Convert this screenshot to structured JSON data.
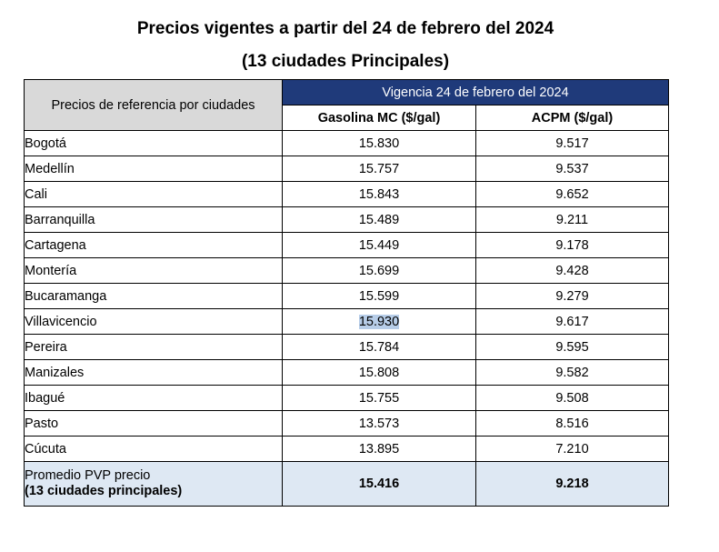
{
  "title": {
    "line1": "Precios vigentes a partir del 24 de febrero del 2024",
    "line2": "(13 ciudades Principales)"
  },
  "table": {
    "ref_header": "Precios de referencia por ciudades",
    "vigencia_header": "Vigencia 24 de febrero del 2024",
    "col_gasolina": "Gasolina MC ($/gal)",
    "col_acpm": "ACPM ($/gal)",
    "rows": [
      {
        "city": "Bogotá",
        "gasolina": "15.830",
        "acpm": "9.517"
      },
      {
        "city": "Medellín",
        "gasolina": "15.757",
        "acpm": "9.537"
      },
      {
        "city": "Cali",
        "gasolina": "15.843",
        "acpm": "9.652"
      },
      {
        "city": "Barranquilla",
        "gasolina": "15.489",
        "acpm": "9.211"
      },
      {
        "city": "Cartagena",
        "gasolina": "15.449",
        "acpm": "9.178"
      },
      {
        "city": "Montería",
        "gasolina": "15.699",
        "acpm": "9.428"
      },
      {
        "city": "Bucaramanga",
        "gasolina": "15.599",
        "acpm": "9.279"
      },
      {
        "city": "Villavicencio",
        "gasolina": "15.930",
        "acpm": "9.617"
      },
      {
        "city": "Pereira",
        "gasolina": "15.784",
        "acpm": "9.595"
      },
      {
        "city": "Manizales",
        "gasolina": "15.808",
        "acpm": "9.582"
      },
      {
        "city": "Ibagué",
        "gasolina": "15.755",
        "acpm": "9.508"
      },
      {
        "city": "Pasto",
        "gasolina": "13.573",
        "acpm": "8.516"
      },
      {
        "city": "Cúcuta",
        "gasolina": "13.895",
        "acpm": "7.210"
      }
    ],
    "average": {
      "label_line1": "Promedio PVP precio",
      "label_line2": "(13 ciudades principales)",
      "gasolina": "15.416",
      "acpm": "9.218"
    }
  },
  "colors": {
    "header_blue": "#1f3a7a",
    "header_gray": "#d9d9d9",
    "average_row": "#dee8f3",
    "selection_highlight": "#b7cde8"
  }
}
